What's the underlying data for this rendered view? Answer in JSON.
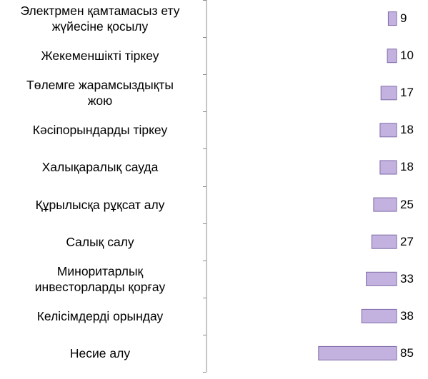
{
  "chart_data": {
    "type": "bar",
    "orientation": "horizontal",
    "categories": [
      [
        "Электрмен қамтамасыз ету",
        "жүйесіне қосылу"
      ],
      [
        "Жекеменшікті тіркеу"
      ],
      [
        "Төлемге жарамсыздықты",
        "жою"
      ],
      [
        "Кәсіпорындарды тіркеу"
      ],
      [
        "Халықаралық сауда"
      ],
      [
        "Құрылысқа рұқсат алу"
      ],
      [
        "Салық салу"
      ],
      [
        "Миноритарлық",
        "инвесторларды қорғау"
      ],
      [
        "Келісімдерді орындау"
      ],
      [
        "Несие алу"
      ]
    ],
    "values": [
      9,
      10,
      17,
      18,
      18,
      25,
      27,
      33,
      38,
      85
    ],
    "data_labels": [
      "9",
      "10",
      "17",
      "18",
      "18",
      "25",
      "27",
      "33",
      "38",
      "85"
    ],
    "axis": "reversed",
    "xlim": [
      0,
      207
    ],
    "bar_color": "#c3b2df",
    "bar_border": "#7e6aa8",
    "legend": "none",
    "grid": false
  }
}
